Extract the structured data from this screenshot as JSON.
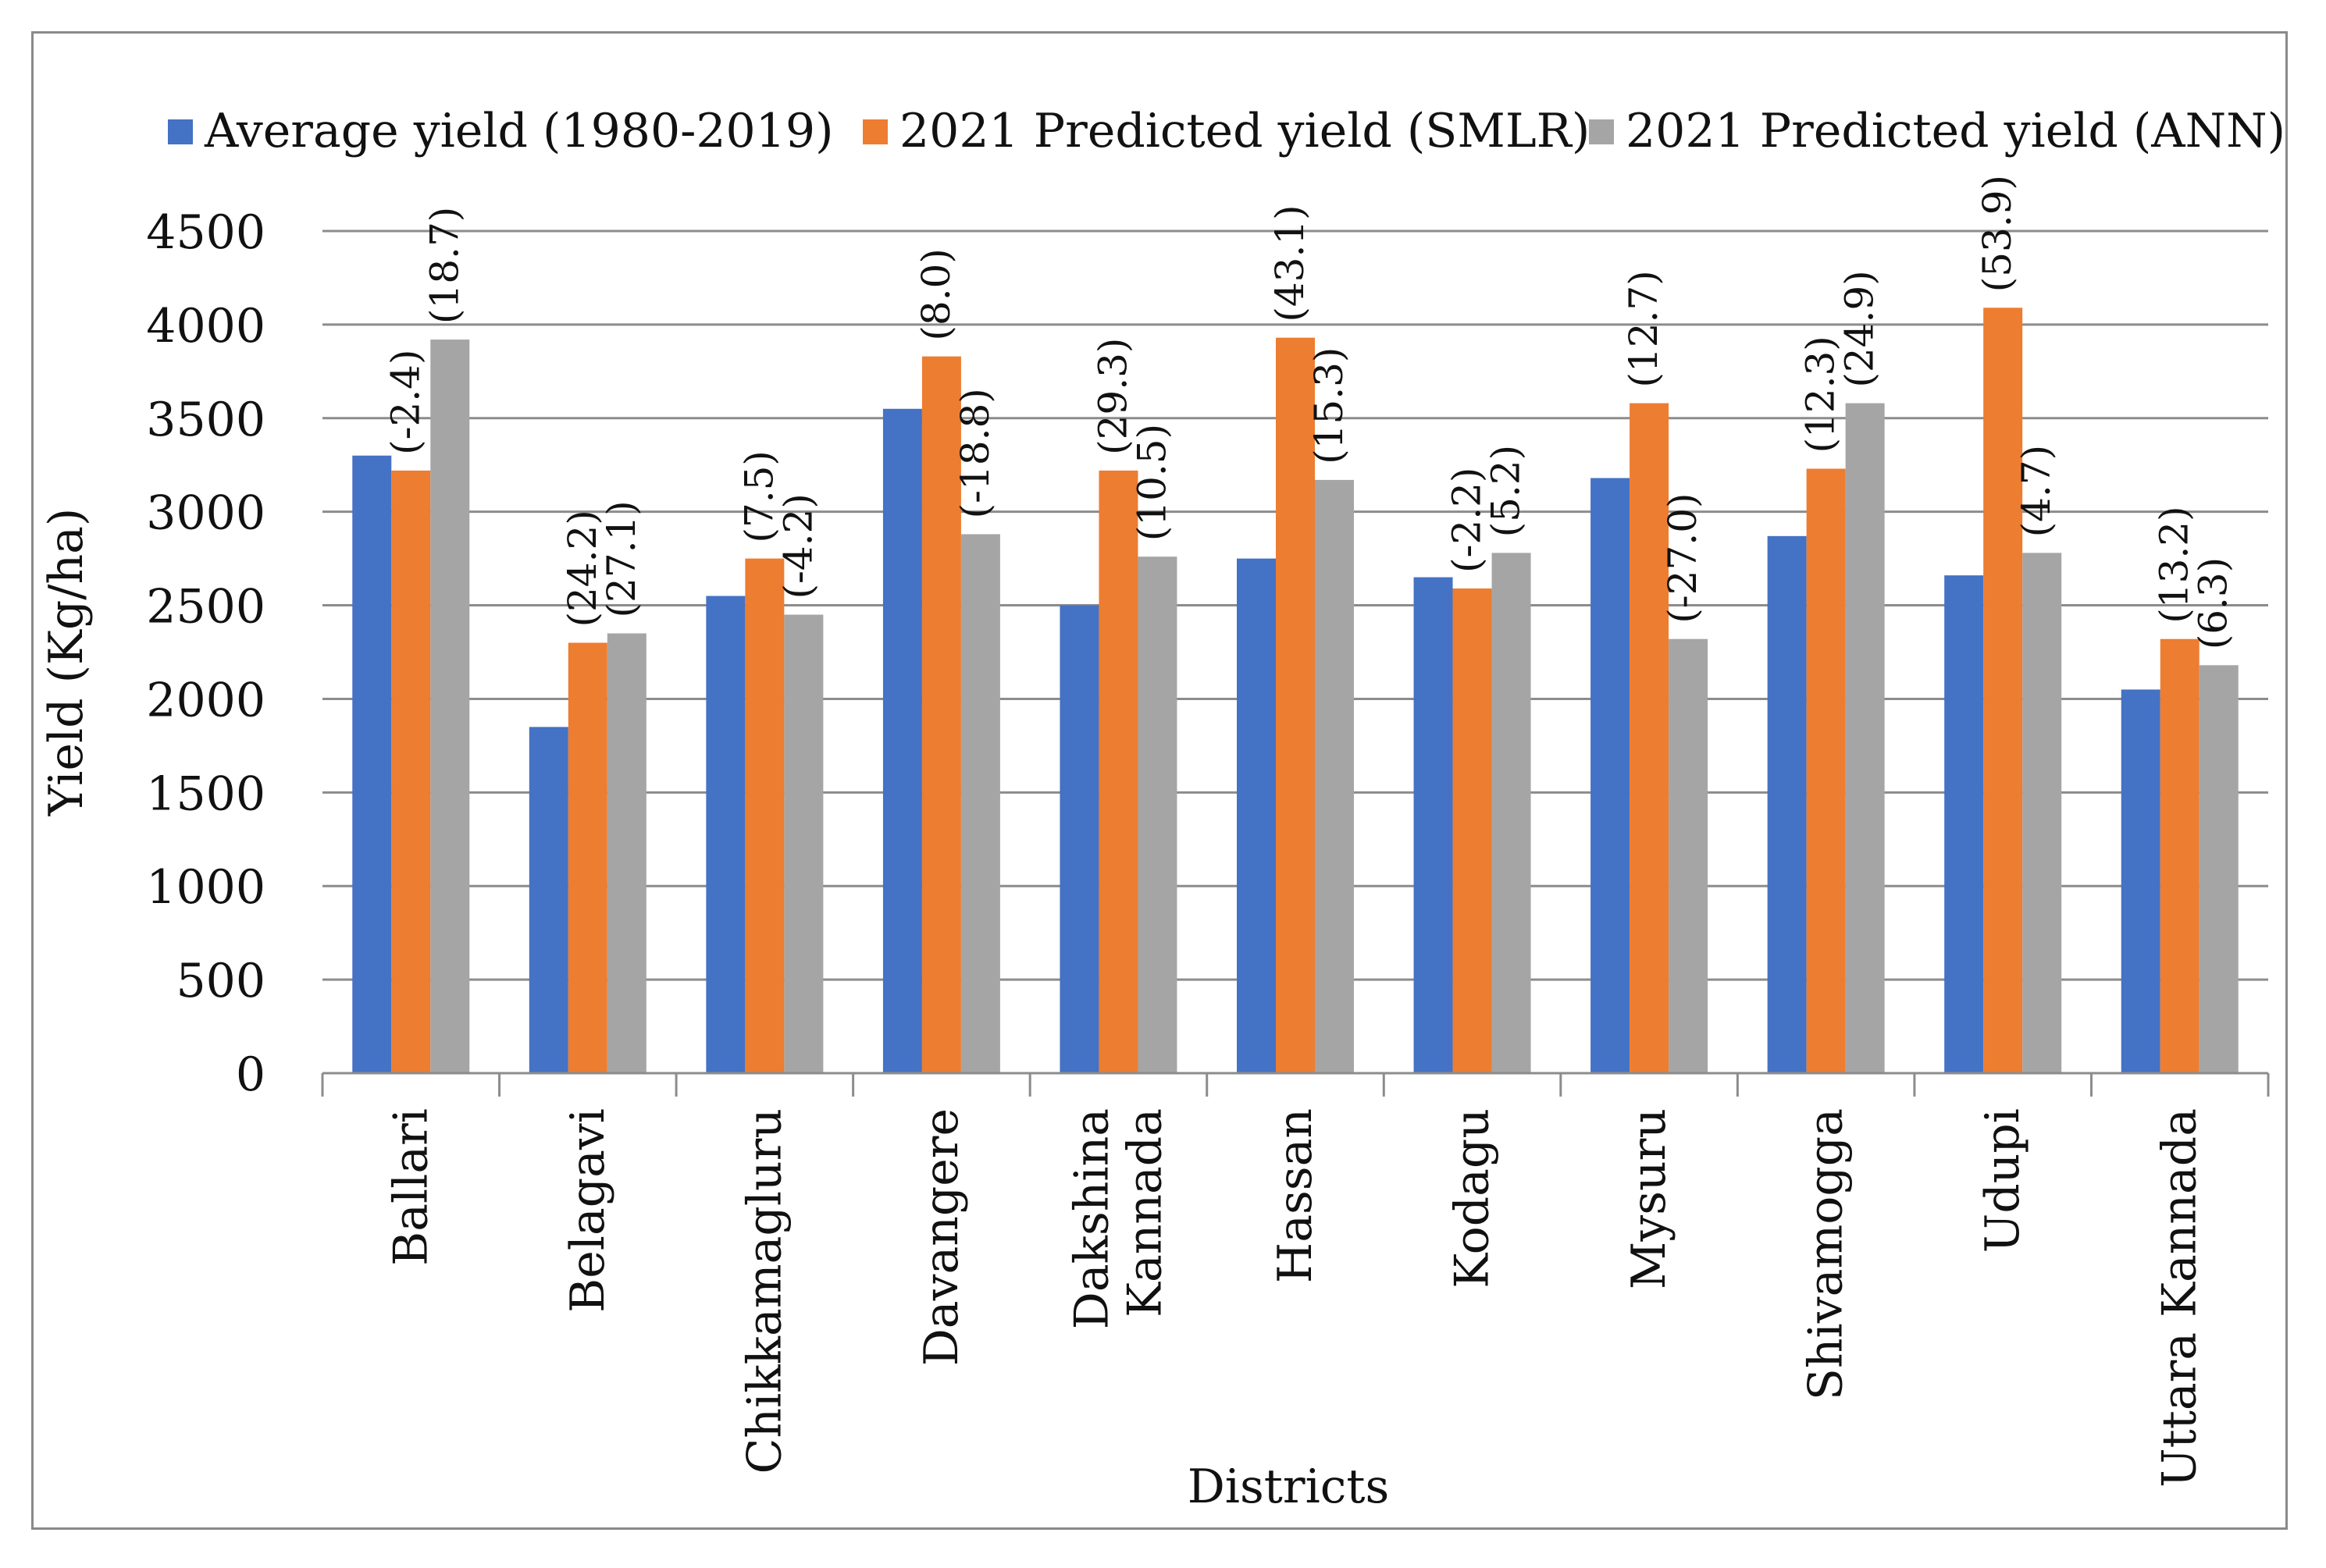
{
  "chart_data": {
    "type": "bar",
    "title": "",
    "xlabel": "Districts",
    "ylabel": "Yield (Kg/ha)",
    "ylim": [
      0,
      4500
    ],
    "yticks": [
      0,
      500,
      1000,
      1500,
      2000,
      2500,
      3000,
      3500,
      4000,
      4500
    ],
    "grid": true,
    "legend_position": "top",
    "categories": [
      [
        "Ballari"
      ],
      [
        "Belagavi"
      ],
      [
        "Chikkamagluru"
      ],
      [
        "Davangere"
      ],
      [
        "Dakshina",
        "Kannada"
      ],
      [
        "Hassan"
      ],
      [
        "Kodagu"
      ],
      [
        "Mysuru"
      ],
      [
        "Shivamogga"
      ],
      [
        "Udupi"
      ],
      [
        "Uttara Kannada"
      ]
    ],
    "series": [
      {
        "name": "Average yield (1980-2019)",
        "color": "#4472C4",
        "values": [
          3300,
          1850,
          2550,
          3550,
          2500,
          2750,
          2650,
          3180,
          2870,
          2660,
          2050
        ],
        "labels": [
          "",
          "",
          "",
          "",
          "",
          "",
          "",
          "",
          "",
          "",
          ""
        ]
      },
      {
        "name": "2021 Predicted yield (SMLR)",
        "color": "#ED7D31",
        "values": [
          3220,
          2300,
          2750,
          3830,
          3220,
          3930,
          2590,
          3580,
          3230,
          4090,
          2320
        ],
        "labels": [
          "(-2.4)",
          "(24.2)",
          "(7.5)",
          "(8.0)",
          "(29.3)",
          "(43.1)",
          "(-2.2)",
          "(12.7)",
          "(12.3)",
          "(53.9)",
          "(13.2)"
        ]
      },
      {
        "name": "2021 Predicted yield (ANN)",
        "color": "#A5A5A5",
        "values": [
          3920,
          2350,
          2450,
          2880,
          2760,
          3170,
          2780,
          2320,
          3580,
          2780,
          2180
        ],
        "labels": [
          "(18.7)",
          "(27.1)",
          "(-4.2)",
          "(-18.8)",
          "(10.5)",
          "(15.3)",
          "(5.2)",
          "(-27.0)",
          "(24.9)",
          "(4.7)",
          "(6.3)"
        ]
      }
    ]
  }
}
